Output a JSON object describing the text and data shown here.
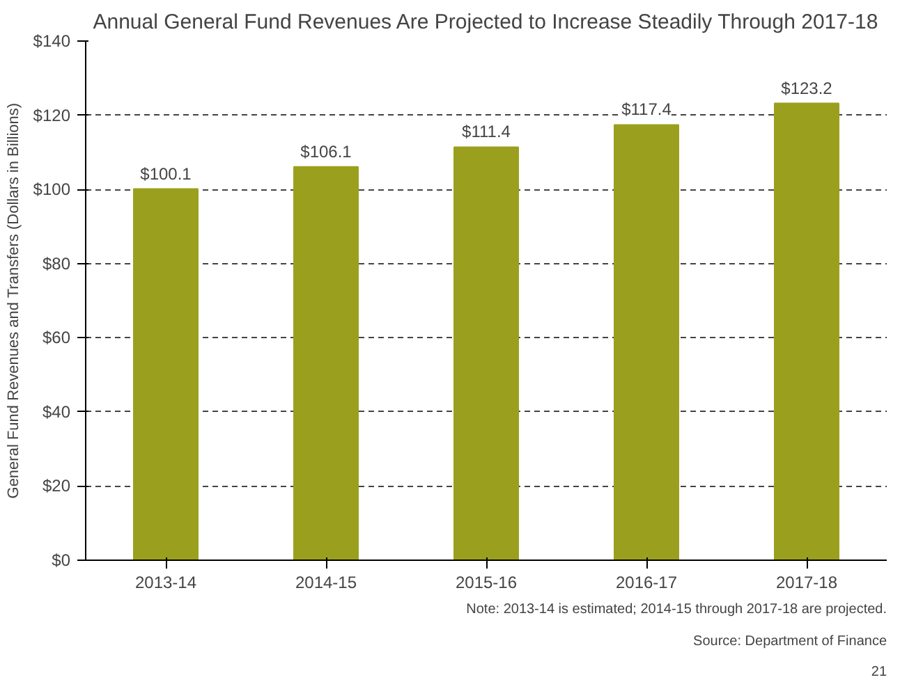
{
  "chart_data": {
    "type": "bar",
    "title": "Annual General Fund Revenues Are Projected to Increase Steadily Through 2017-18",
    "ylabel": "General Fund Revenues and Transfers (Dollars in Billions)",
    "categories": [
      "2013-14",
      "2014-15",
      "2015-16",
      "2016-17",
      "2017-18"
    ],
    "values": [
      100.1,
      106.1,
      111.4,
      117.4,
      123.2
    ],
    "value_labels": [
      "$100.1",
      "$106.1",
      "$111.4",
      "$117.4",
      "$123.2"
    ],
    "color": "#9aa01e",
    "ylim": [
      0,
      140
    ],
    "yticks": [
      {
        "value": 0,
        "label": "$0"
      },
      {
        "value": 20,
        "label": "$20"
      },
      {
        "value": 40,
        "label": "$40"
      },
      {
        "value": 60,
        "label": "$60"
      },
      {
        "value": 80,
        "label": "$80"
      },
      {
        "value": 100,
        "label": "$100"
      },
      {
        "value": 120,
        "label": "$120"
      },
      {
        "value": 140,
        "label": "$140"
      }
    ],
    "grid": "y",
    "annotations": [
      "Note: 2013-14 is estimated; 2014-15 through 2017-18 are projected.",
      "Source: Department of Finance",
      "21"
    ]
  }
}
